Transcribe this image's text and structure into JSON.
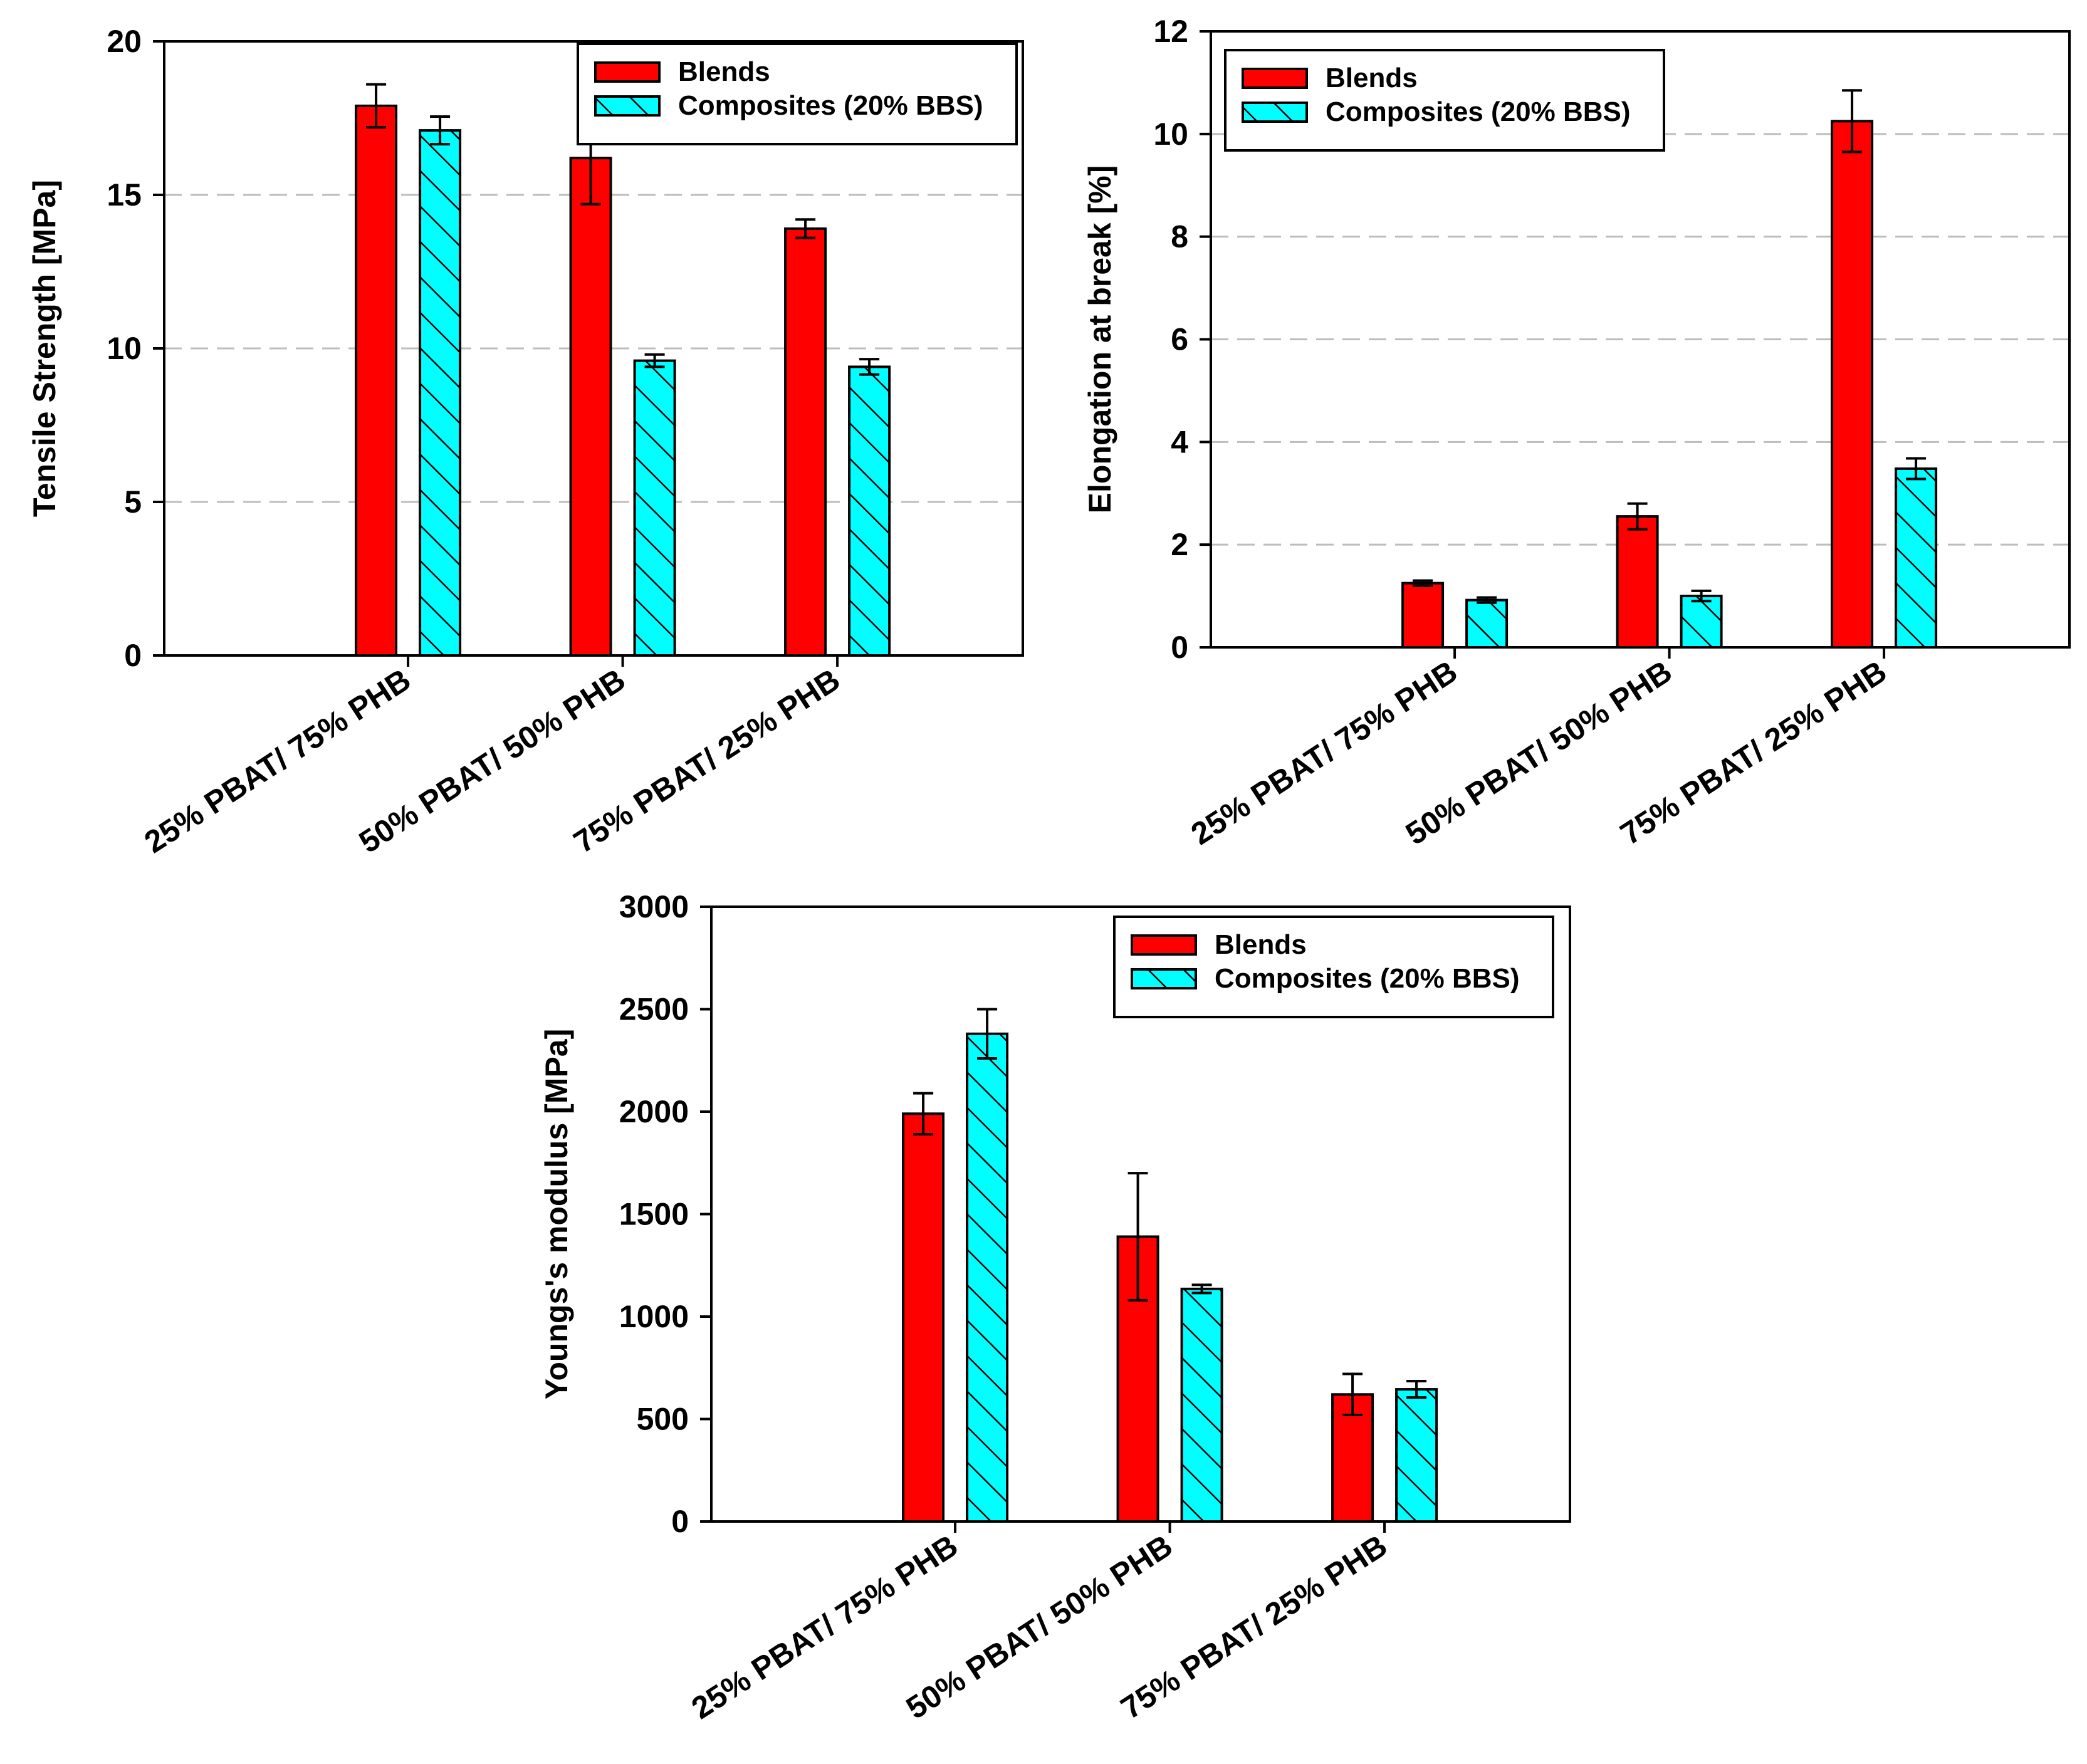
{
  "colors": {
    "blends": "#ff0000",
    "composites": "#00ffff",
    "axis": "#000000",
    "grid": "#bdbdbd",
    "hatch": "#000000"
  },
  "chart_data": [
    {
      "type": "bar",
      "ylabel": "Tensile Strength [MPa]",
      "categories": [
        "25% PBAT/ 75% PHB",
        "50% PBAT/ 50% PHB",
        "75% PBAT/ 25% PHB"
      ],
      "ylim": [
        0,
        20
      ],
      "yticks": [
        0,
        5,
        10,
        15,
        20
      ],
      "grid": "horizontal dashed",
      "legend_position": "top-right",
      "series": [
        {
          "name": "Blends",
          "fill": "solid",
          "values": [
            17.9,
            16.2,
            13.9
          ],
          "errors": [
            0.7,
            1.5,
            0.3
          ]
        },
        {
          "name": "Composites (20% BBS)",
          "fill": "hatched",
          "values": [
            17.1,
            9.6,
            9.4
          ],
          "errors": [
            0.45,
            0.2,
            0.25
          ]
        }
      ]
    },
    {
      "type": "bar",
      "ylabel": "Elongation at break [%]",
      "categories": [
        "25% PBAT/ 75% PHB",
        "50% PBAT/ 50% PHB",
        "75% PBAT/ 25% PHB"
      ],
      "ylim": [
        0,
        12
      ],
      "yticks": [
        0,
        2,
        4,
        6,
        8,
        10,
        12
      ],
      "grid": "horizontal dashed",
      "legend_position": "top-left",
      "series": [
        {
          "name": "Blends",
          "fill": "solid",
          "values": [
            1.25,
            2.55,
            10.25
          ],
          "errors": [
            0.05,
            0.25,
            0.6
          ]
        },
        {
          "name": "Composites (20% BBS)",
          "fill": "hatched",
          "values": [
            0.92,
            1.0,
            3.48
          ],
          "errors": [
            0.05,
            0.1,
            0.2
          ]
        }
      ]
    },
    {
      "type": "bar",
      "ylabel": "Youngs's modulus [MPa]",
      "categories": [
        "25% PBAT/ 75% PHB",
        "50% PBAT/ 50% PHB",
        "75% PBAT/ 25% PHB"
      ],
      "ylim": [
        0,
        3000
      ],
      "yticks": [
        0,
        500,
        1000,
        1500,
        2000,
        2500,
        3000
      ],
      "grid": "none",
      "legend_position": "top-right",
      "series": [
        {
          "name": "Blends",
          "fill": "solid",
          "values": [
            1990,
            1390,
            620
          ],
          "errors": [
            100,
            310,
            100
          ]
        },
        {
          "name": "Composites (20% BBS)",
          "fill": "hatched",
          "values": [
            2380,
            1135,
            645
          ],
          "errors": [
            120,
            20,
            40
          ]
        }
      ]
    }
  ]
}
